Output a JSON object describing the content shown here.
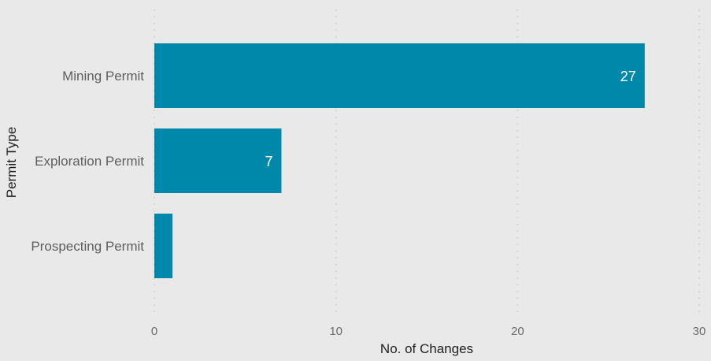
{
  "chart_data": {
    "type": "bar",
    "orientation": "horizontal",
    "categories": [
      "Mining Permit",
      "Exploration Permit",
      "Prospecting Permit"
    ],
    "values": [
      27,
      7,
      1
    ],
    "data_labels": [
      "27",
      "7",
      ""
    ],
    "xlabel": "No. of Changes",
    "ylabel": "Permit Type",
    "xlim": [
      0,
      30
    ],
    "xticks": [
      0,
      10,
      20,
      30
    ],
    "grid": "vertical dotted",
    "bar_color": "#0088aa",
    "background_color": "#e9e9e9"
  }
}
